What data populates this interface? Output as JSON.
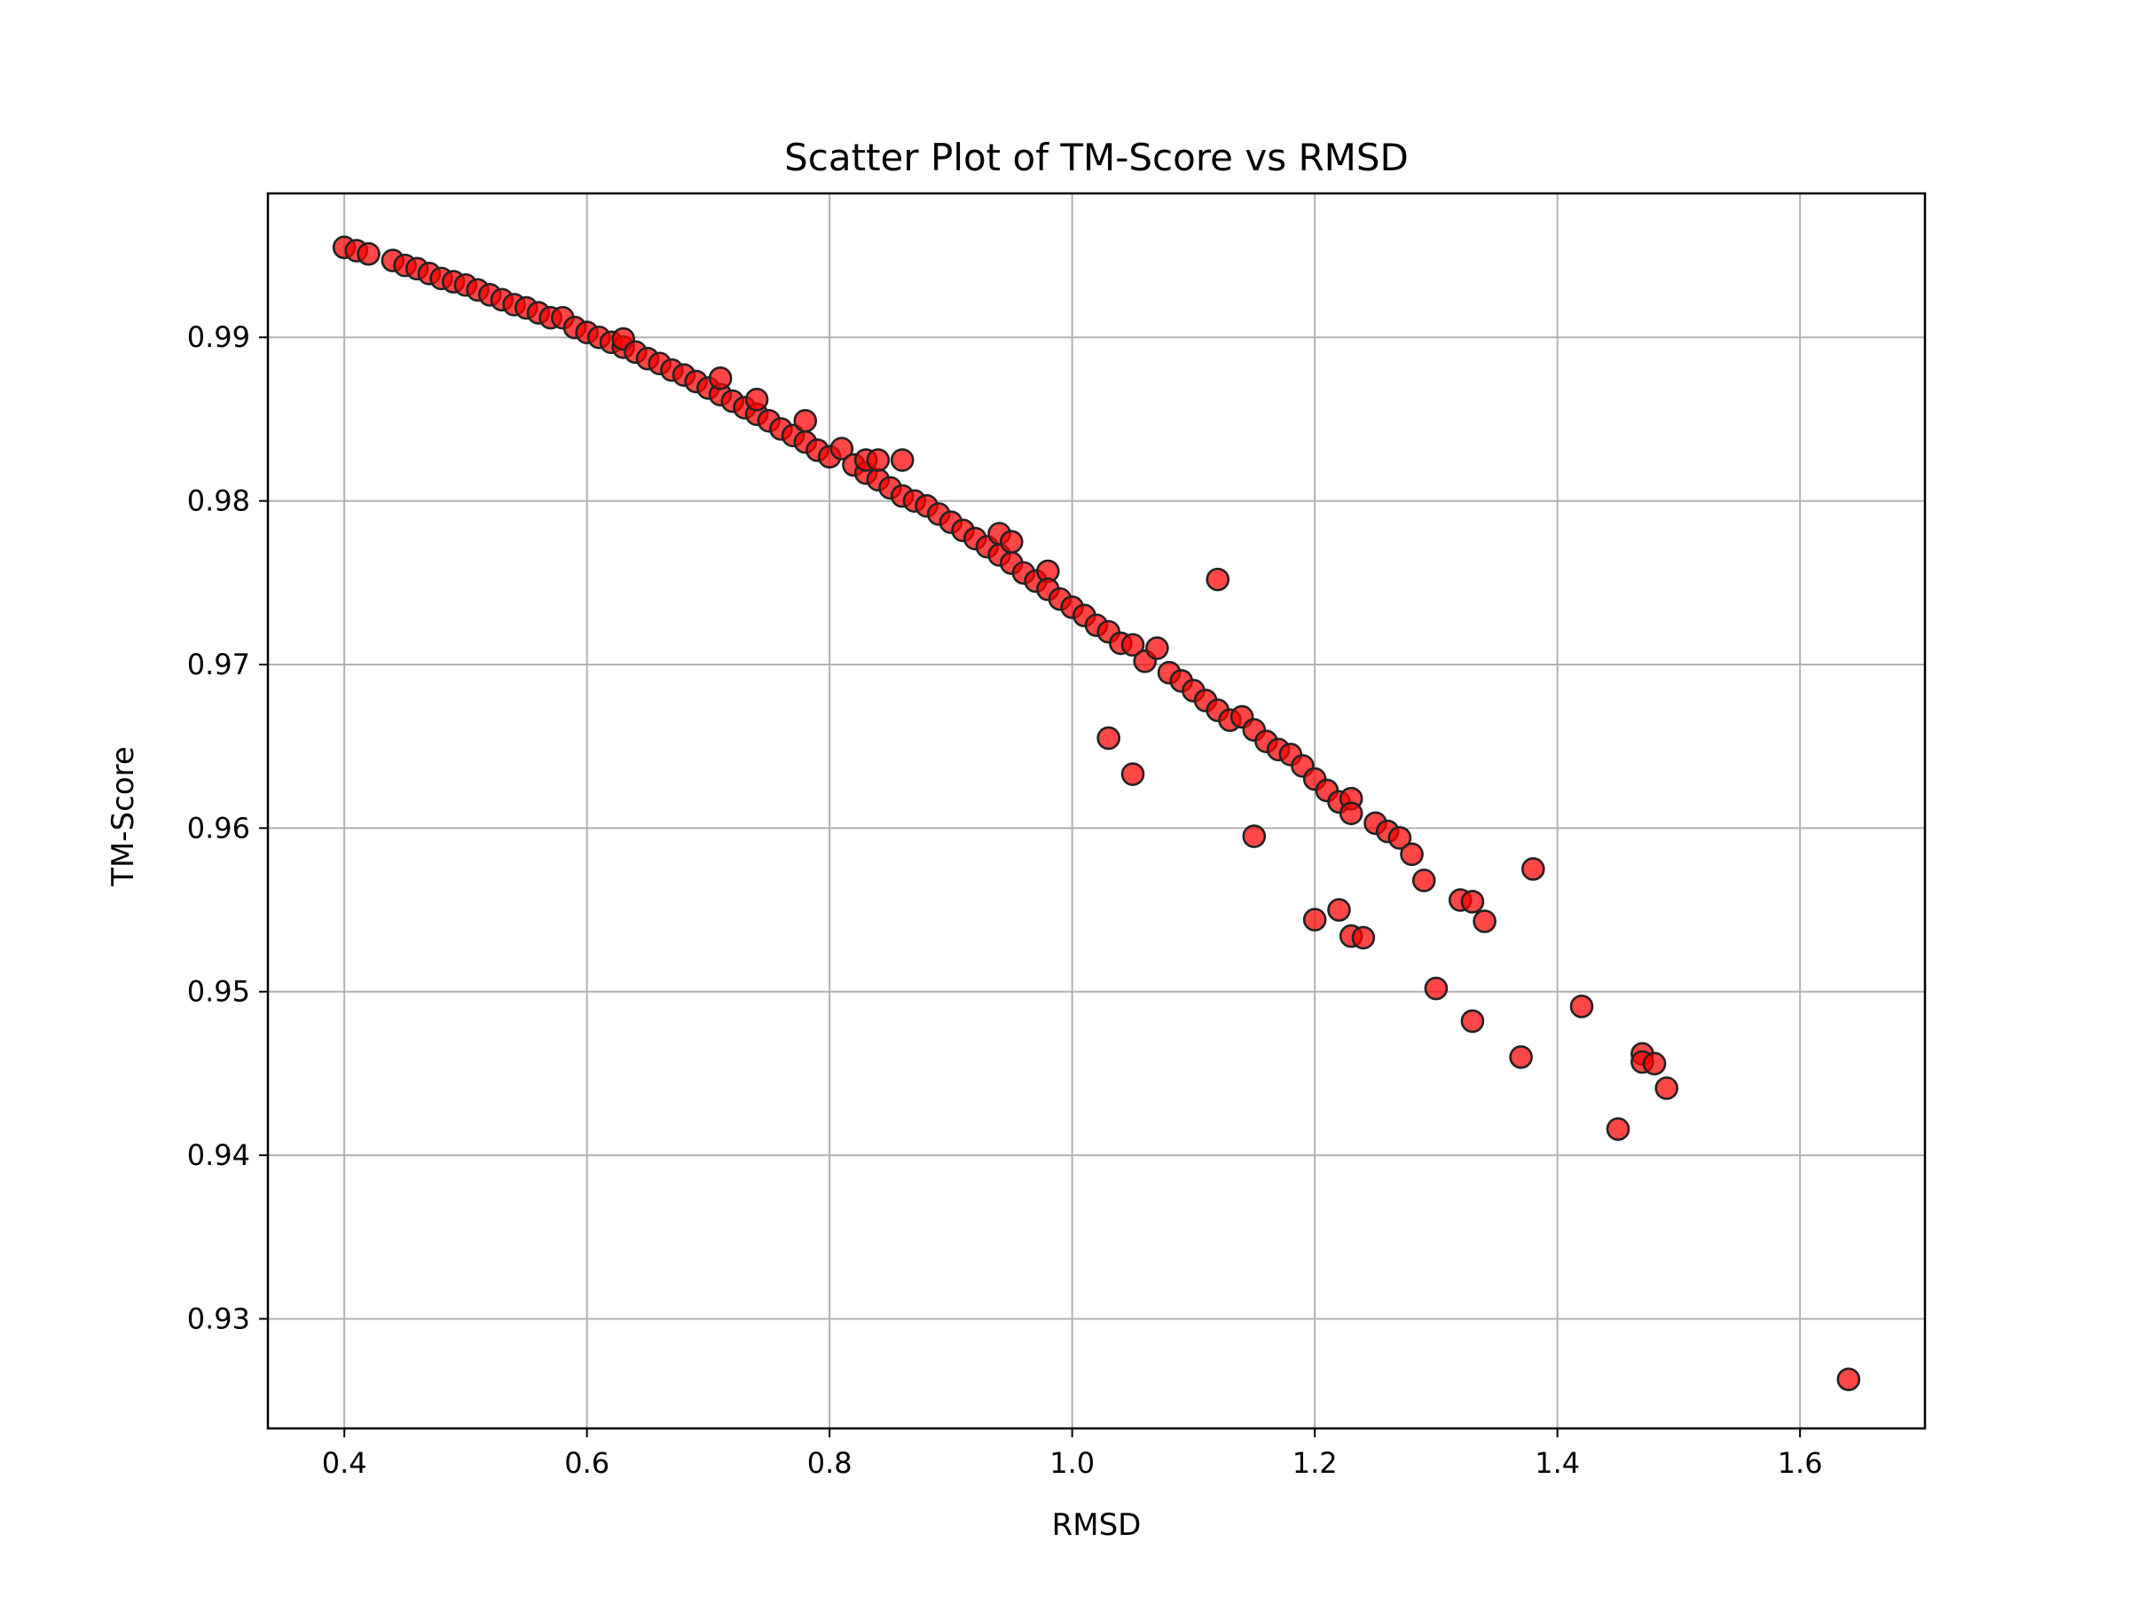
{
  "chart_data": {
    "type": "scatter",
    "title": "Scatter Plot of TM-Score vs RMSD",
    "xlabel": "RMSD",
    "ylabel": "TM-Score",
    "xlim": [
      0.337,
      1.703
    ],
    "ylim": [
      0.9233,
      0.9988
    ],
    "xticks": [
      0.4,
      0.6,
      0.8,
      1.0,
      1.2,
      1.4,
      1.6
    ],
    "xtick_labels": [
      "0.4",
      "0.6",
      "0.8",
      "1.0",
      "1.2",
      "1.4",
      "1.6"
    ],
    "yticks": [
      0.93,
      0.94,
      0.95,
      0.96,
      0.97,
      0.98,
      0.99
    ],
    "ytick_labels": [
      "0.93",
      "0.94",
      "0.95",
      "0.96",
      "0.97",
      "0.98",
      "0.99"
    ],
    "grid": true,
    "marker_color": "#ff0000",
    "marker_edge_color": "#222222",
    "series": [
      {
        "points": [
          [
            0.4,
            0.9955
          ],
          [
            0.41,
            0.9953
          ],
          [
            0.42,
            0.9951
          ],
          [
            0.44,
            0.9947
          ],
          [
            0.45,
            0.9944
          ],
          [
            0.46,
            0.9942
          ],
          [
            0.47,
            0.9939
          ],
          [
            0.48,
            0.9936
          ],
          [
            0.49,
            0.9934
          ],
          [
            0.5,
            0.9932
          ],
          [
            0.51,
            0.9929
          ],
          [
            0.52,
            0.9926
          ],
          [
            0.53,
            0.9923
          ],
          [
            0.54,
            0.992
          ],
          [
            0.55,
            0.9918
          ],
          [
            0.56,
            0.9915
          ],
          [
            0.57,
            0.9912
          ],
          [
            0.58,
            0.9912
          ],
          [
            0.59,
            0.9906
          ],
          [
            0.6,
            0.9903
          ],
          [
            0.61,
            0.99
          ],
          [
            0.62,
            0.9897
          ],
          [
            0.63,
            0.9894
          ],
          [
            0.63,
            0.9899
          ],
          [
            0.64,
            0.9891
          ],
          [
            0.65,
            0.9887
          ],
          [
            0.66,
            0.9884
          ],
          [
            0.67,
            0.988
          ],
          [
            0.68,
            0.9877
          ],
          [
            0.69,
            0.9873
          ],
          [
            0.7,
            0.9869
          ],
          [
            0.71,
            0.9865
          ],
          [
            0.71,
            0.9875
          ],
          [
            0.72,
            0.9861
          ],
          [
            0.73,
            0.9857
          ],
          [
            0.74,
            0.9853
          ],
          [
            0.74,
            0.9862
          ],
          [
            0.75,
            0.9849
          ],
          [
            0.76,
            0.9844
          ],
          [
            0.77,
            0.984
          ],
          [
            0.78,
            0.9836
          ],
          [
            0.78,
            0.9849
          ],
          [
            0.79,
            0.9831
          ],
          [
            0.8,
            0.9827
          ],
          [
            0.81,
            0.9832
          ],
          [
            0.82,
            0.9822
          ],
          [
            0.83,
            0.9817
          ],
          [
            0.83,
            0.9825
          ],
          [
            0.84,
            0.9813
          ],
          [
            0.84,
            0.9825
          ],
          [
            0.85,
            0.9808
          ],
          [
            0.86,
            0.9825
          ],
          [
            0.86,
            0.9803
          ],
          [
            0.87,
            0.98
          ],
          [
            0.88,
            0.9797
          ],
          [
            0.89,
            0.9792
          ],
          [
            0.9,
            0.9787
          ],
          [
            0.91,
            0.9782
          ],
          [
            0.92,
            0.9777
          ],
          [
            0.93,
            0.9772
          ],
          [
            0.94,
            0.978
          ],
          [
            0.94,
            0.9767
          ],
          [
            0.95,
            0.9762
          ],
          [
            0.95,
            0.9775
          ],
          [
            0.96,
            0.9756
          ],
          [
            0.97,
            0.9751
          ],
          [
            0.98,
            0.9757
          ],
          [
            0.98,
            0.9746
          ],
          [
            0.99,
            0.974
          ],
          [
            1.0,
            0.9735
          ],
          [
            1.01,
            0.973
          ],
          [
            1.02,
            0.9724
          ],
          [
            1.03,
            0.972
          ],
          [
            1.04,
            0.9713
          ],
          [
            1.05,
            0.9712
          ],
          [
            1.06,
            0.9702
          ],
          [
            1.07,
            0.971
          ],
          [
            1.08,
            0.9695
          ],
          [
            1.09,
            0.969
          ],
          [
            1.1,
            0.9684
          ],
          [
            1.11,
            0.9678
          ],
          [
            1.12,
            0.9672
          ],
          [
            1.13,
            0.9666
          ],
          [
            1.14,
            0.9668
          ],
          [
            1.15,
            0.966
          ],
          [
            1.16,
            0.9653
          ],
          [
            1.17,
            0.9648
          ],
          [
            1.18,
            0.9645
          ],
          [
            1.19,
            0.9638
          ],
          [
            1.2,
            0.963
          ],
          [
            1.21,
            0.9623
          ],
          [
            1.22,
            0.9616
          ],
          [
            1.23,
            0.9618
          ],
          [
            1.23,
            0.9609
          ],
          [
            1.25,
            0.9603
          ],
          [
            1.26,
            0.9598
          ],
          [
            1.27,
            0.9594
          ],
          [
            1.28,
            0.9584
          ],
          [
            1.29,
            0.9568
          ],
          [
            1.12,
            0.9752
          ],
          [
            1.03,
            0.9655
          ],
          [
            1.05,
            0.9633
          ],
          [
            1.15,
            0.9595
          ],
          [
            1.2,
            0.9544
          ],
          [
            1.22,
            0.955
          ],
          [
            1.23,
            0.9534
          ],
          [
            1.24,
            0.9533
          ],
          [
            1.3,
            0.9502
          ],
          [
            1.32,
            0.9556
          ],
          [
            1.33,
            0.9555
          ],
          [
            1.34,
            0.9543
          ],
          [
            1.33,
            0.9482
          ],
          [
            1.37,
            0.946
          ],
          [
            1.38,
            0.9575
          ],
          [
            1.42,
            0.9491
          ],
          [
            1.45,
            0.9416
          ],
          [
            1.47,
            0.9462
          ],
          [
            1.47,
            0.9457
          ],
          [
            1.48,
            0.9456
          ],
          [
            1.49,
            0.9441
          ],
          [
            1.64,
            0.9263
          ]
        ]
      }
    ]
  }
}
